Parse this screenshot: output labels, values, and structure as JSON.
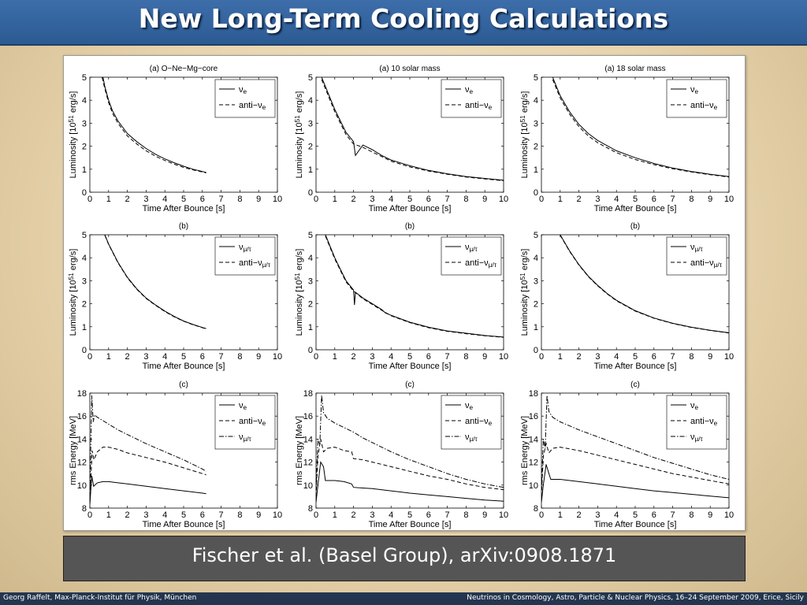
{
  "slide": {
    "title": "New Long-Term Cooling Calculations",
    "caption": "Fischer et al. (Basel Group), arXiv:0908.1871",
    "footer_left": "Georg Raffelt, Max-Planck-Institut für Physik, München",
    "footer_right": "Neutrinos in Cosmology, Astro, Particle & Nuclear Physics, 16–24 September 2009, Erice, Sicily"
  },
  "colors": {
    "title_bar": "#2f5d99",
    "caption_box": "#555555",
    "footer_bar": "#24364f",
    "curve": "#000000"
  },
  "chart_data": [
    {
      "type": "line",
      "panel": "top-left",
      "title": "(a)   O−Ne−Mg−core",
      "xlabel": "Time After Bounce [s]",
      "ylabel": "Luminosity [10^51 erg/s]",
      "xlim": [
        0,
        10
      ],
      "ylim": [
        0,
        5
      ],
      "legend": "top-right",
      "xticks": [
        "0",
        "1",
        "2",
        "3",
        "4",
        "5",
        "6",
        "7",
        "8",
        "9",
        "10"
      ],
      "yticks": [
        "0",
        "1",
        "2",
        "3",
        "4",
        "5"
      ],
      "series": [
        {
          "name": "ν_e",
          "style": "solid",
          "x": [
            0.7,
            0.8,
            1,
            1.2,
            1.5,
            2,
            2.5,
            3,
            3.5,
            4,
            4.5,
            5,
            5.5,
            6,
            6.2
          ],
          "y": [
            5,
            4.6,
            4.0,
            3.55,
            3.1,
            2.55,
            2.2,
            1.9,
            1.65,
            1.45,
            1.28,
            1.13,
            1.0,
            0.9,
            0.86
          ]
        },
        {
          "name": "anti−ν_e",
          "style": "dashed",
          "x": [
            0.65,
            0.8,
            1,
            1.2,
            1.5,
            2,
            2.5,
            3,
            3.5,
            4,
            4.5,
            5,
            5.5,
            6,
            6.2
          ],
          "y": [
            5,
            4.5,
            3.9,
            3.45,
            3.0,
            2.45,
            2.1,
            1.8,
            1.57,
            1.38,
            1.22,
            1.08,
            0.97,
            0.88,
            0.84
          ]
        }
      ]
    },
    {
      "type": "line",
      "panel": "top-middle",
      "title": "(a)    10 solar mass",
      "xlabel": "Time After Bounce [s]",
      "ylabel": "Luminosity [10^51 erg/s]",
      "xlim": [
        0,
        10
      ],
      "ylim": [
        0,
        5
      ],
      "legend": "top-right",
      "xticks": [
        "0",
        "1",
        "2",
        "3",
        "4",
        "5",
        "6",
        "7",
        "8",
        "9",
        "10"
      ],
      "yticks": [
        "0",
        "1",
        "2",
        "3",
        "4",
        "5"
      ],
      "series": [
        {
          "name": "ν_e",
          "style": "solid",
          "x": [
            0.3,
            0.5,
            0.8,
            1,
            1.3,
            1.6,
            2,
            2.1,
            2.5,
            3,
            3.5,
            4,
            5,
            6,
            7,
            8,
            9,
            10
          ],
          "y": [
            5,
            4.6,
            4.0,
            3.6,
            3.1,
            2.6,
            2.2,
            1.6,
            2.05,
            1.85,
            1.6,
            1.4,
            1.15,
            0.95,
            0.8,
            0.68,
            0.6,
            0.52
          ]
        },
        {
          "name": "anti−ν_e",
          "style": "dashed",
          "x": [
            0.3,
            0.5,
            0.8,
            1,
            1.3,
            1.6,
            2,
            2.5,
            3,
            3.5,
            4,
            5,
            6,
            7,
            8,
            9,
            10
          ],
          "y": [
            4.9,
            4.5,
            3.9,
            3.5,
            3.0,
            2.5,
            2.1,
            1.95,
            1.75,
            1.55,
            1.35,
            1.1,
            0.92,
            0.78,
            0.66,
            0.58,
            0.5
          ]
        }
      ]
    },
    {
      "type": "line",
      "panel": "top-right",
      "title": "(a)    18 solar mass",
      "xlabel": "Time After Bounce [s]",
      "ylabel": "Luminosity [10^51 erg/s]",
      "xlim": [
        0,
        10
      ],
      "ylim": [
        0,
        5
      ],
      "legend": "top-right",
      "xticks": [
        "0",
        "1",
        "2",
        "3",
        "4",
        "5",
        "6",
        "7",
        "8",
        "9",
        "10"
      ],
      "yticks": [
        "0",
        "1",
        "2",
        "3",
        "4",
        "5"
      ],
      "series": [
        {
          "name": "ν_e",
          "style": "solid",
          "x": [
            0.6,
            0.8,
            1,
            1.5,
            2,
            2.5,
            3,
            4,
            5,
            6,
            7,
            8,
            9,
            10
          ],
          "y": [
            5,
            4.6,
            4.2,
            3.5,
            2.95,
            2.55,
            2.25,
            1.8,
            1.5,
            1.25,
            1.05,
            0.9,
            0.78,
            0.68
          ]
        },
        {
          "name": "anti−ν_e",
          "style": "dashed",
          "x": [
            0.6,
            0.8,
            1,
            1.5,
            2,
            2.5,
            3,
            4,
            5,
            6,
            7,
            8,
            9,
            10
          ],
          "y": [
            4.9,
            4.5,
            4.1,
            3.4,
            2.85,
            2.45,
            2.15,
            1.72,
            1.42,
            1.2,
            1.02,
            0.88,
            0.76,
            0.66
          ]
        }
      ]
    },
    {
      "type": "line",
      "panel": "middle-left",
      "title": "(b)",
      "xlabel": "Time After Bounce [s]",
      "ylabel": "Luminosity [10^51 erg/s]",
      "xlim": [
        0,
        10
      ],
      "ylim": [
        0,
        5
      ],
      "legend": "top-right",
      "xticks": [
        "0",
        "1",
        "2",
        "3",
        "4",
        "5",
        "6",
        "7",
        "8",
        "9",
        "10"
      ],
      "yticks": [
        "0",
        "1",
        "2",
        "3",
        "4",
        "5"
      ],
      "series": [
        {
          "name": "ν_μ/τ",
          "style": "solid",
          "x": [
            0.8,
            1,
            1.5,
            2,
            2.5,
            3,
            3.5,
            4,
            4.5,
            5,
            5.5,
            6,
            6.2
          ],
          "y": [
            5,
            4.6,
            3.8,
            3.15,
            2.65,
            2.25,
            1.95,
            1.68,
            1.45,
            1.25,
            1.1,
            0.97,
            0.92
          ]
        },
        {
          "name": "anti−ν_μ/τ",
          "style": "dashed",
          "x": [
            0.8,
            1,
            1.5,
            2,
            2.5,
            3,
            3.5,
            4,
            4.5,
            5,
            5.5,
            6,
            6.2
          ],
          "y": [
            4.98,
            4.58,
            3.78,
            3.13,
            2.63,
            2.23,
            1.93,
            1.66,
            1.43,
            1.24,
            1.09,
            0.96,
            0.91
          ]
        }
      ]
    },
    {
      "type": "line",
      "panel": "middle-middle",
      "title": "(b)",
      "xlabel": "Time After Bounce [s]",
      "ylabel": "Luminosity [10^51 erg/s]",
      "xlim": [
        0,
        10
      ],
      "ylim": [
        0,
        5
      ],
      "legend": "top-right",
      "xticks": [
        "0",
        "1",
        "2",
        "3",
        "4",
        "5",
        "6",
        "7",
        "8",
        "9",
        "10"
      ],
      "yticks": [
        "0",
        "1",
        "2",
        "3",
        "4",
        "5"
      ],
      "series": [
        {
          "name": "ν_μ/τ",
          "style": "solid",
          "x": [
            0.5,
            0.8,
            1,
            1.3,
            1.6,
            2,
            2.05,
            2.1,
            2.5,
            3,
            3.5,
            3.7,
            4,
            5,
            6,
            7,
            8,
            9,
            10
          ],
          "y": [
            5,
            4.4,
            4.0,
            3.5,
            3.0,
            2.6,
            1.95,
            2.5,
            2.25,
            2.0,
            1.75,
            1.6,
            1.5,
            1.2,
            0.98,
            0.82,
            0.72,
            0.62,
            0.55
          ]
        },
        {
          "name": "anti−ν_μ/τ",
          "style": "dashed",
          "x": [
            0.5,
            0.8,
            1,
            1.3,
            1.6,
            2,
            2.5,
            3,
            3.5,
            4,
            5,
            6,
            7,
            8,
            9,
            10
          ],
          "y": [
            4.95,
            4.35,
            3.95,
            3.45,
            2.95,
            2.55,
            2.22,
            1.97,
            1.72,
            1.48,
            1.18,
            0.96,
            0.8,
            0.7,
            0.61,
            0.54
          ]
        }
      ]
    },
    {
      "type": "line",
      "panel": "middle-right",
      "title": "(b)",
      "xlabel": "Time After Bounce [s]",
      "ylabel": "Luminosity [10^51 erg/s]",
      "xlim": [
        0,
        10
      ],
      "ylim": [
        0,
        5
      ],
      "legend": "top-right",
      "xticks": [
        "0",
        "1",
        "2",
        "3",
        "4",
        "5",
        "6",
        "7",
        "8",
        "9",
        "10"
      ],
      "yticks": [
        "0",
        "1",
        "2",
        "3",
        "4",
        "5"
      ],
      "series": [
        {
          "name": "ν_μ/τ",
          "style": "solid",
          "x": [
            1,
            1.5,
            2,
            2.5,
            3,
            3.5,
            4,
            5,
            6,
            7,
            8,
            9,
            10
          ],
          "y": [
            5,
            4.3,
            3.7,
            3.2,
            2.8,
            2.45,
            2.15,
            1.7,
            1.38,
            1.15,
            0.98,
            0.85,
            0.74
          ]
        },
        {
          "name": "anti−ν_μ/τ",
          "style": "dashed",
          "x": [
            1,
            1.5,
            2,
            2.5,
            3,
            3.5,
            4,
            5,
            6,
            7,
            8,
            9,
            10
          ],
          "y": [
            4.98,
            4.28,
            3.68,
            3.18,
            2.78,
            2.43,
            2.13,
            1.68,
            1.37,
            1.14,
            0.97,
            0.84,
            0.73
          ]
        }
      ]
    },
    {
      "type": "line",
      "panel": "bottom-left",
      "title": "(c)",
      "xlabel": "Time After Bounce [s]",
      "ylabel": "rms Energy [MeV]",
      "xlim": [
        0,
        10
      ],
      "ylim": [
        8,
        18
      ],
      "legend": "top-right",
      "xticks": [
        "0",
        "1",
        "2",
        "3",
        "4",
        "5",
        "6",
        "7",
        "8",
        "9",
        "10"
      ],
      "yticks": [
        "8",
        "10",
        "12",
        "14",
        "16",
        "18"
      ],
      "series": [
        {
          "name": "ν_e",
          "style": "solid",
          "x": [
            0,
            0.1,
            0.2,
            0.4,
            0.7,
            1,
            1.5,
            2,
            3,
            4,
            5,
            6,
            6.2
          ],
          "y": [
            8.3,
            10.8,
            9.9,
            10.2,
            10.3,
            10.3,
            10.2,
            10.1,
            9.9,
            9.7,
            9.5,
            9.3,
            9.25
          ]
        },
        {
          "name": "anti−ν_e",
          "style": "dashed",
          "x": [
            0,
            0.12,
            0.22,
            0.4,
            0.7,
            1,
            1.5,
            2,
            3,
            4,
            5,
            6,
            6.2
          ],
          "y": [
            8.5,
            13.0,
            12.2,
            12.9,
            13.3,
            13.3,
            13.1,
            12.8,
            12.4,
            12.0,
            11.5,
            11.0,
            10.9
          ]
        },
        {
          "name": "ν_μ/τ",
          "style": "dashdot",
          "x": [
            0,
            0.1,
            0.18,
            0.25,
            0.4,
            0.7,
            1,
            1.5,
            2,
            3,
            4,
            5,
            6,
            6.2
          ],
          "y": [
            9.0,
            17.8,
            15.5,
            16.1,
            15.9,
            15.6,
            15.3,
            14.8,
            14.4,
            13.6,
            12.9,
            12.2,
            11.4,
            11.2
          ]
        }
      ]
    },
    {
      "type": "line",
      "panel": "bottom-middle",
      "title": "(c)",
      "xlabel": "Time After Bounce [s]",
      "ylabel": "rms Energy [MeV]",
      "xlim": [
        0,
        10
      ],
      "ylim": [
        8,
        18
      ],
      "legend": "top-right",
      "xticks": [
        "0",
        "1",
        "2",
        "3",
        "4",
        "5",
        "6",
        "7",
        "8",
        "9",
        "10"
      ],
      "yticks": [
        "8",
        "10",
        "12",
        "14",
        "16",
        "18"
      ],
      "series": [
        {
          "name": "ν_e",
          "style": "solid",
          "x": [
            0,
            0.1,
            0.25,
            0.4,
            0.5,
            1,
            1.5,
            1.9,
            2,
            2.5,
            3,
            4,
            5,
            6,
            7,
            8,
            9,
            10
          ],
          "y": [
            8.5,
            10.0,
            12.0,
            11.6,
            10.4,
            10.4,
            10.3,
            10.1,
            9.8,
            9.75,
            9.7,
            9.5,
            9.3,
            9.15,
            9.0,
            8.85,
            8.7,
            8.6
          ]
        },
        {
          "name": "anti−ν_e",
          "style": "dashed",
          "x": [
            0,
            0.1,
            0.25,
            0.4,
            0.6,
            1,
            1.5,
            1.9,
            2,
            2.5,
            3,
            4,
            5,
            6,
            7,
            8,
            9,
            10
          ],
          "y": [
            9.0,
            12.5,
            14.0,
            12.9,
            13.2,
            13.3,
            13.0,
            12.9,
            12.3,
            12.2,
            12.0,
            11.6,
            11.2,
            10.8,
            10.5,
            10.1,
            9.8,
            9.6
          ]
        },
        {
          "name": "ν_μ/τ",
          "style": "dashdot",
          "x": [
            0,
            0.1,
            0.2,
            0.3,
            0.4,
            0.6,
            1,
            1.5,
            2,
            2.5,
            3,
            4,
            5,
            6,
            7,
            8,
            9,
            10
          ],
          "y": [
            9.5,
            14.0,
            13.5,
            17.8,
            16.3,
            15.8,
            15.4,
            15.0,
            14.6,
            14.1,
            13.7,
            12.9,
            12.2,
            11.6,
            11.0,
            10.5,
            10.1,
            9.8
          ]
        }
      ]
    },
    {
      "type": "line",
      "panel": "bottom-right",
      "title": "(c)",
      "xlabel": "Time After Bounce [s]",
      "ylabel": "rms Energy [MeV]",
      "xlim": [
        0,
        10
      ],
      "ylim": [
        8,
        18
      ],
      "legend": "top-right",
      "xticks": [
        "0",
        "1",
        "2",
        "3",
        "4",
        "5",
        "6",
        "7",
        "8",
        "9",
        "10"
      ],
      "yticks": [
        "8",
        "10",
        "12",
        "14",
        "16",
        "18"
      ],
      "series": [
        {
          "name": "ν_e",
          "style": "solid",
          "x": [
            0,
            0.1,
            0.25,
            0.4,
            0.5,
            1,
            2,
            3,
            4,
            5,
            6,
            7,
            8,
            9,
            10
          ],
          "y": [
            8.5,
            10.0,
            11.8,
            11.0,
            10.5,
            10.5,
            10.3,
            10.1,
            9.9,
            9.7,
            9.5,
            9.35,
            9.2,
            9.05,
            8.9
          ]
        },
        {
          "name": "anti−ν_e",
          "style": "dashed",
          "x": [
            0,
            0.1,
            0.25,
            0.4,
            0.6,
            1,
            2,
            3,
            4,
            5,
            6,
            7,
            8,
            9,
            10
          ],
          "y": [
            9.0,
            12.5,
            13.6,
            12.8,
            13.2,
            13.3,
            13.0,
            12.6,
            12.2,
            11.8,
            11.4,
            11.0,
            10.7,
            10.4,
            10.1
          ]
        },
        {
          "name": "ν_μ/τ",
          "style": "dashdot",
          "x": [
            0,
            0.1,
            0.2,
            0.3,
            0.4,
            0.6,
            1,
            2,
            3,
            4,
            5,
            6,
            7,
            8,
            9,
            10
          ],
          "y": [
            9.5,
            14.0,
            13.2,
            17.8,
            16.4,
            15.9,
            15.5,
            14.8,
            14.2,
            13.6,
            13.0,
            12.4,
            11.9,
            11.4,
            10.9,
            10.5
          ]
        }
      ]
    }
  ]
}
